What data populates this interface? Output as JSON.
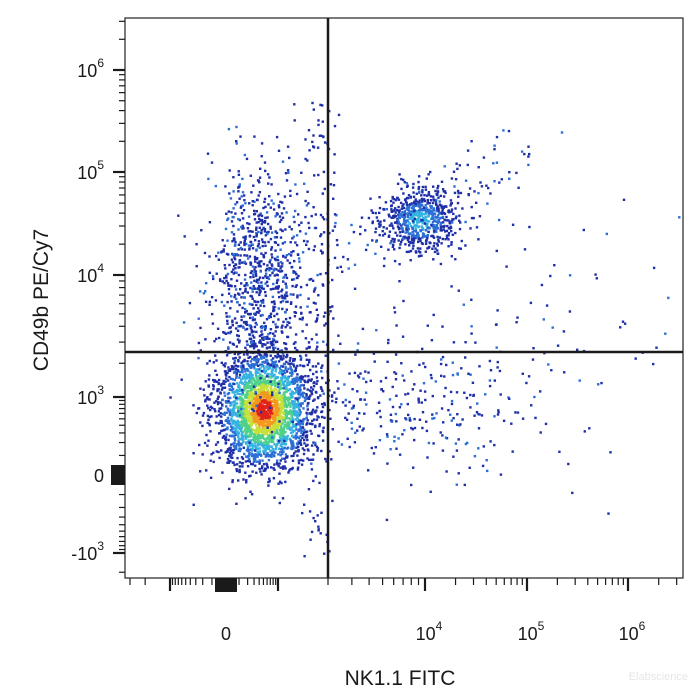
{
  "chart_data": {
    "type": "scatter",
    "subtype": "flow-cytometry density plot",
    "xlabel": "NK1.1 FITC",
    "ylabel": "CD49b PE/Cy7",
    "x_scale": "biexponential",
    "y_scale": "biexponential",
    "x_tick_labels": [
      {
        "value": 0,
        "base": "0",
        "exp": ""
      },
      {
        "value": 10000,
        "base": "10",
        "exp": "4"
      },
      {
        "value": 100000,
        "base": "10",
        "exp": "5"
      },
      {
        "value": 1000000,
        "base": "10",
        "exp": "6"
      }
    ],
    "y_tick_labels": [
      {
        "value": 1000000,
        "base": "10",
        "exp": "6"
      },
      {
        "value": 100000,
        "base": "10",
        "exp": "5"
      },
      {
        "value": 10000,
        "base": "10",
        "exp": "4"
      },
      {
        "value": 1000,
        "base": "10",
        "exp": "3"
      },
      {
        "value": 0,
        "base": "0",
        "exp": ""
      },
      {
        "value": -1000,
        "base": "-10",
        "exp": "3"
      }
    ],
    "quadrant_gate": {
      "x": 2000,
      "y": 2500
    },
    "populations": [
      {
        "label": "NK1.1- CD49b- (main)",
        "x_center": 500,
        "y_center": 700,
        "relative_size": 0.62
      },
      {
        "label": "NK1.1- CD49b+",
        "x_center": 400,
        "y_center": 10000,
        "relative_size": 0.12
      },
      {
        "label": "NK1.1+ CD49b+",
        "x_center": 9000,
        "y_center": 35000,
        "relative_size": 0.08
      },
      {
        "label": "NK1.1+ CD49b-",
        "x_center": 8000,
        "y_center": 800,
        "relative_size": 0.05
      },
      {
        "label": "scatter",
        "x_center": 100000,
        "y_center": 3000,
        "relative_size": 0.02
      }
    ],
    "color_scale": [
      "#1f2fa8",
      "#2b6fd6",
      "#36b3e0",
      "#4fd18a",
      "#c8e03a",
      "#f29a1f",
      "#e0231a"
    ],
    "grid": false,
    "legend": "none",
    "watermark": "Elabscience"
  }
}
